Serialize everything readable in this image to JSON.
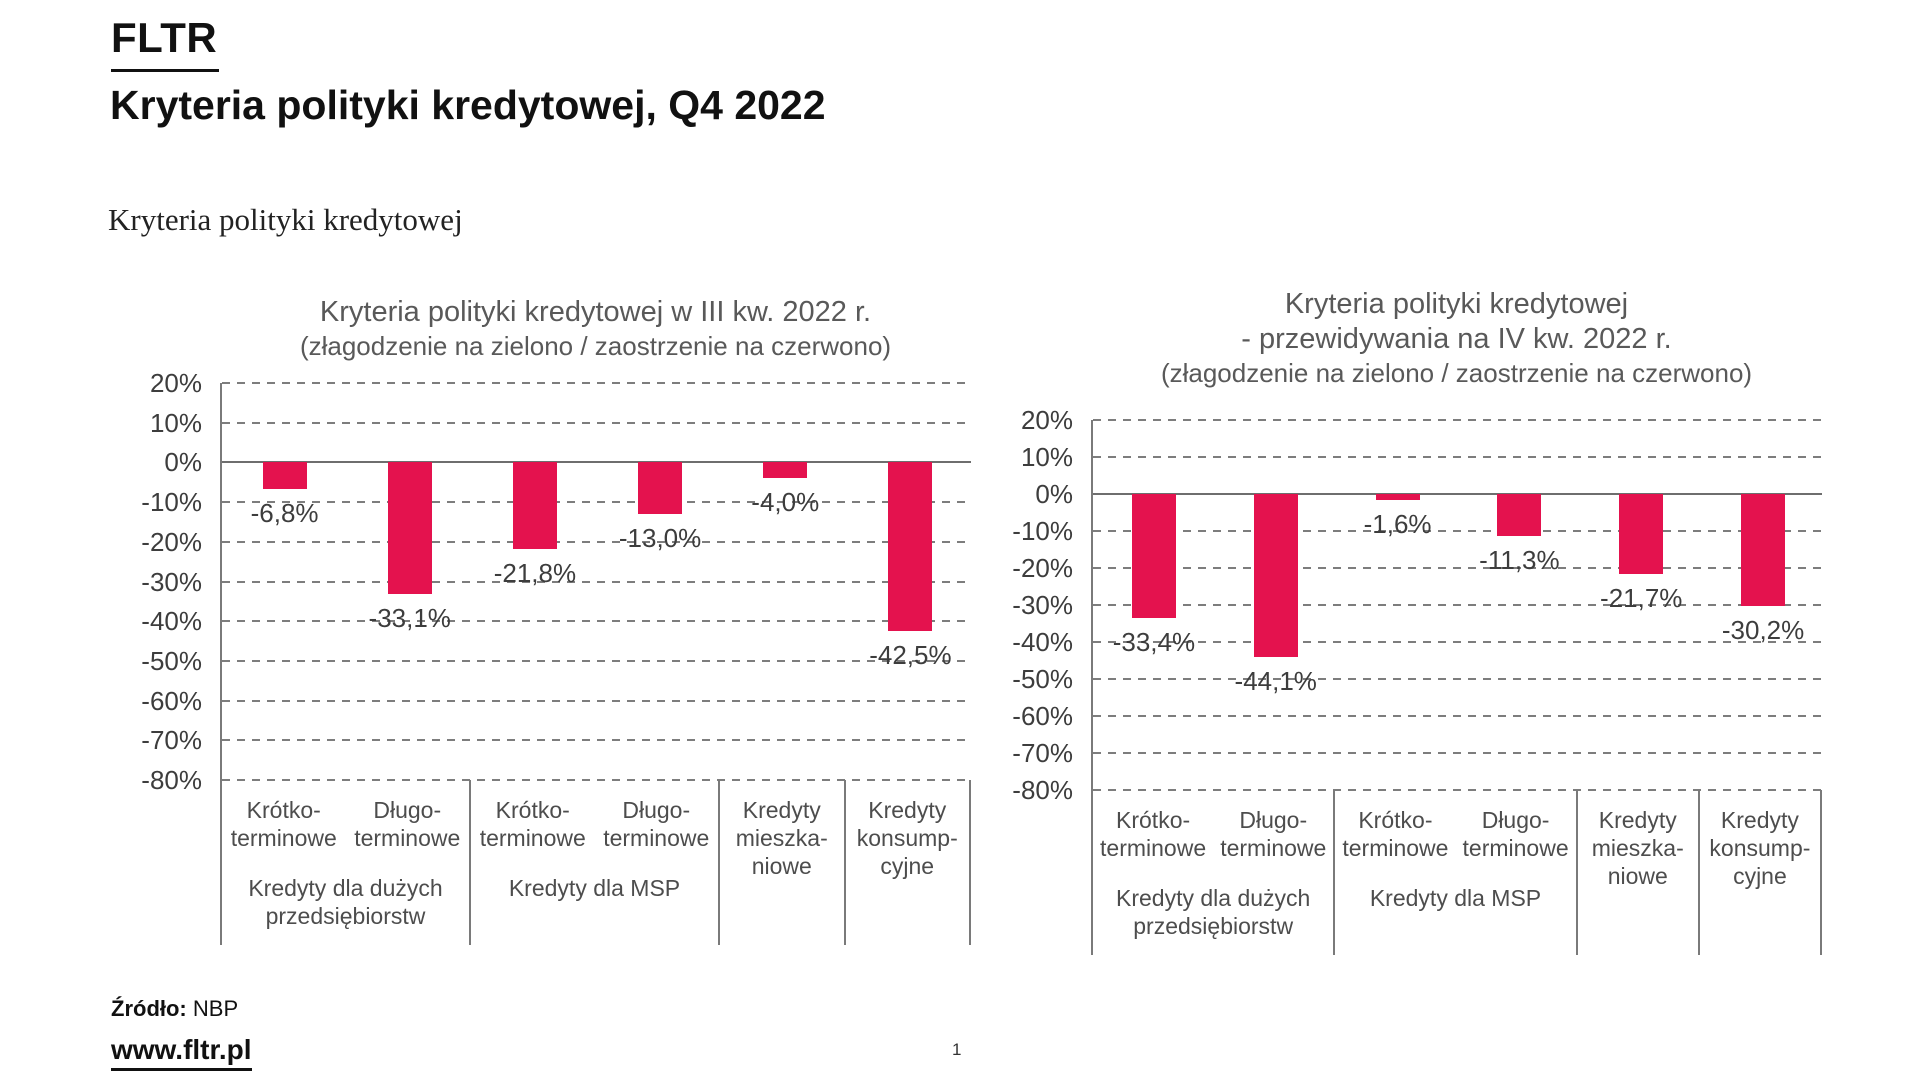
{
  "page": {
    "logo": "FLTR",
    "title": "Kryteria polityki kredytowej, Q4 2022",
    "section_heading": "Kryteria polityki kredytowej",
    "footer": {
      "source_label": "Źródło:",
      "source_value": " NBP",
      "website": "www.fltr.pl",
      "page_number": "1"
    }
  },
  "colors": {
    "bar": "#e4124e",
    "grid": "#7d7d7d",
    "chart_title_text": "#595959",
    "axis_text": "#3d3d3d"
  },
  "chart_data": [
    {
      "type": "bar",
      "title_lines": [
        "Kryteria polityki kredytowej w III kw. 2022 r."
      ],
      "subtitle": "(złagodzenie na zielono / zaostrzenie na czerwono)",
      "categories": [
        "Krótko-\nterminowe",
        "Długo-\nterminowe",
        "Krótko-\nterminowe",
        "Długo-\nterminowe",
        "Kredyty\nmieszka-\nniowe",
        "Kredyty\nkonsump-\ncyjne"
      ],
      "values": [
        -6.8,
        -33.1,
        -21.8,
        -13.0,
        -4.0,
        -42.5
      ],
      "value_labels": [
        "-6,8%",
        "-33,1%",
        "-21,8%",
        "-13,0%",
        "-4,0%",
        "-42,5%"
      ],
      "groups": [
        {
          "label": "Kredyty dla dużych\nprzedsiębiorstw",
          "span": 2
        },
        {
          "label": "Kredyty dla MSP",
          "span": 2
        },
        {
          "label": "",
          "span": 1
        },
        {
          "label": "",
          "span": 1
        }
      ],
      "ylim": [
        -80,
        20
      ],
      "yticks": [
        20,
        10,
        0,
        -10,
        -20,
        -30,
        -40,
        -50,
        -60,
        -70,
        -80
      ],
      "ytick_labels": [
        "20%",
        "10%",
        "0%",
        "-10%",
        "-20%",
        "-30%",
        "-40%",
        "-50%",
        "-60%",
        "-70%",
        "-80%"
      ],
      "grid": true,
      "legend": null,
      "bar_color": "#e4124e"
    },
    {
      "type": "bar",
      "title_lines": [
        "Kryteria polityki kredytowej",
        "- przewidywania na IV kw. 2022 r."
      ],
      "subtitle": "(złagodzenie na zielono / zaostrzenie na czerwono)",
      "categories": [
        "Krótko-\nterminowe",
        "Długo-\nterminowe",
        "Krótko-\nterminowe",
        "Długo-\nterminowe",
        "Kredyty\nmieszka-\nniowe",
        "Kredyty\nkonsump-\ncyjne"
      ],
      "values": [
        -33.4,
        -44.1,
        -1.6,
        -11.3,
        -21.7,
        -30.2
      ],
      "value_labels": [
        "-33,4%",
        "-44,1%",
        "-1,6%",
        "-11,3%",
        "-21,7%",
        "-30,2%"
      ],
      "groups": [
        {
          "label": "Kredyty dla dużych\nprzedsiębiorstw",
          "span": 2
        },
        {
          "label": "Kredyty dla MSP",
          "span": 2
        },
        {
          "label": "",
          "span": 1
        },
        {
          "label": "",
          "span": 1
        }
      ],
      "ylim": [
        -80,
        20
      ],
      "yticks": [
        20,
        10,
        0,
        -10,
        -20,
        -30,
        -40,
        -50,
        -60,
        -70,
        -80
      ],
      "ytick_labels": [
        "20%",
        "10%",
        "0%",
        "-10%",
        "-20%",
        "-30%",
        "-40%",
        "-50%",
        "-60%",
        "-70%",
        "-80%"
      ],
      "grid": true,
      "legend": null,
      "bar_color": "#e4124e"
    }
  ]
}
